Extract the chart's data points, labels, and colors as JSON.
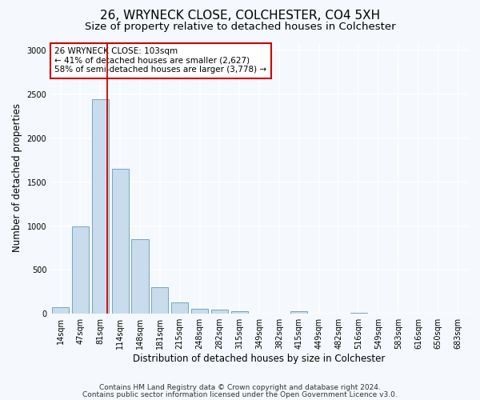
{
  "title": "26, WRYNECK CLOSE, COLCHESTER, CO4 5XH",
  "subtitle": "Size of property relative to detached houses in Colchester",
  "xlabel": "Distribution of detached houses by size in Colchester",
  "ylabel": "Number of detached properties",
  "categories": [
    "14sqm",
    "47sqm",
    "81sqm",
    "114sqm",
    "148sqm",
    "181sqm",
    "215sqm",
    "248sqm",
    "282sqm",
    "315sqm",
    "349sqm",
    "382sqm",
    "415sqm",
    "449sqm",
    "482sqm",
    "516sqm",
    "549sqm",
    "583sqm",
    "616sqm",
    "650sqm",
    "683sqm"
  ],
  "values": [
    75,
    1000,
    2450,
    1650,
    850,
    300,
    130,
    60,
    50,
    30,
    0,
    0,
    30,
    0,
    0,
    10,
    0,
    0,
    0,
    0,
    0
  ],
  "bar_color": "#c8dcee",
  "bar_edge_color": "#6699bb",
  "annotation_box_text": "26 WRYNECK CLOSE: 103sqm\n← 41% of detached houses are smaller (2,627)\n58% of semi-detached houses are larger (3,778) →",
  "annotation_box_color": "#ffffff",
  "annotation_box_edge_color": "#cc0000",
  "vline_x_index": 2.35,
  "vline_color": "#cc0000",
  "ylim": [
    0,
    3100
  ],
  "yticks": [
    0,
    500,
    1000,
    1500,
    2000,
    2500,
    3000
  ],
  "footer_line1": "Contains HM Land Registry data © Crown copyright and database right 2024.",
  "footer_line2": "Contains public sector information licensed under the Open Government Licence v3.0.",
  "background_color": "#f5f8fc",
  "plot_bg_color": "#f5f8fc",
  "grid_color": "#ffffff",
  "title_fontsize": 11,
  "subtitle_fontsize": 9.5,
  "label_fontsize": 8.5,
  "tick_fontsize": 7,
  "footer_fontsize": 6.5,
  "ann_fontsize": 7.5
}
